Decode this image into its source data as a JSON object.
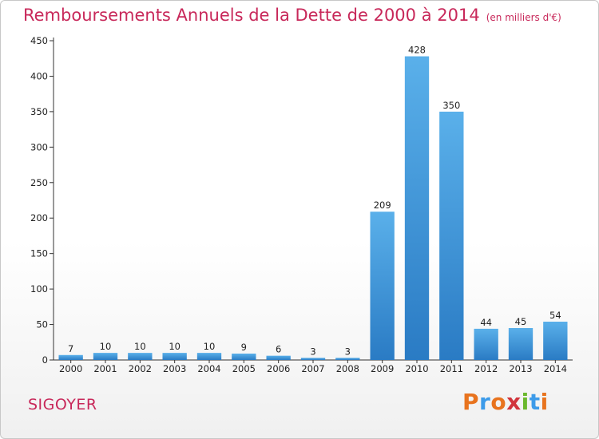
{
  "header": {
    "title": "Remboursements Annuels de la Dette de 2000 à 2014",
    "subtitle": "(en milliers d'€)"
  },
  "footer": {
    "town": "SIGOYER",
    "logo_letters": [
      "P",
      "r",
      "o",
      "x",
      "i",
      "t",
      "i"
    ],
    "logo_colors": [
      "#e8731e",
      "#3d9be9",
      "#e8731e",
      "#d1343c",
      "#6bb82d",
      "#3d9be9",
      "#e8731e"
    ]
  },
  "colors": {
    "bar_top": "#5ab0ea",
    "bar_bottom": "#2a7bc4",
    "accent": "#c8285a"
  },
  "chart_data": {
    "type": "bar",
    "title": "Remboursements Annuels de la Dette de 2000 à 2014",
    "subtitle": "(en milliers d'€)",
    "xlabel": "",
    "ylabel": "",
    "categories": [
      "2000",
      "2001",
      "2002",
      "2003",
      "2004",
      "2005",
      "2006",
      "2007",
      "2008",
      "2009",
      "2010",
      "2011",
      "2012",
      "2013",
      "2014"
    ],
    "values": [
      7,
      10,
      10,
      10,
      10,
      9,
      6,
      3,
      3,
      209,
      428,
      350,
      44,
      45,
      54
    ],
    "ylim": [
      0,
      450
    ],
    "yticks": [
      0,
      50,
      100,
      150,
      200,
      250,
      300,
      350,
      400,
      450
    ],
    "grid": false,
    "legend": "none"
  }
}
